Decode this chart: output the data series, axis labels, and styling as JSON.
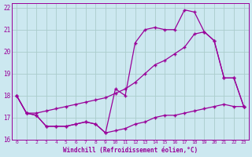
{
  "xlabel": "Windchill (Refroidissement éolien,°C)",
  "background_color": "#cce8f0",
  "grid_color": "#aacccc",
  "line_color": "#990099",
  "xlim": [
    -0.5,
    23.5
  ],
  "ylim": [
    16,
    22.2
  ],
  "yticks": [
    16,
    17,
    18,
    19,
    20,
    21,
    22
  ],
  "xticks": [
    0,
    1,
    2,
    3,
    4,
    5,
    6,
    7,
    8,
    9,
    10,
    11,
    12,
    13,
    14,
    15,
    16,
    17,
    18,
    19,
    20,
    21,
    22,
    23
  ],
  "line1_x": [
    0,
    1,
    2,
    3,
    4,
    5,
    6,
    7,
    8,
    9,
    10,
    11,
    12,
    13,
    14,
    15,
    16,
    17,
    18,
    19,
    20,
    21,
    22,
    23
  ],
  "line1_y": [
    18.0,
    17.2,
    17.1,
    16.6,
    16.6,
    16.6,
    16.7,
    16.8,
    16.7,
    16.3,
    18.3,
    18.0,
    20.4,
    21.0,
    21.1,
    21.0,
    21.0,
    21.9,
    21.8,
    20.9,
    20.5,
    18.8,
    18.8,
    17.5
  ],
  "line2_x": [
    0,
    1,
    2,
    3,
    4,
    5,
    6,
    7,
    8,
    9,
    10,
    11,
    12,
    13,
    14,
    15,
    16,
    17,
    18,
    19,
    20,
    21,
    22,
    23
  ],
  "line2_y": [
    18.0,
    17.2,
    17.2,
    17.3,
    17.4,
    17.5,
    17.6,
    17.7,
    17.8,
    17.9,
    18.1,
    18.3,
    18.6,
    19.0,
    19.4,
    19.6,
    19.9,
    20.2,
    20.8,
    20.9,
    20.5,
    18.8,
    18.8,
    17.5
  ],
  "line3_x": [
    0,
    1,
    2,
    3,
    4,
    5,
    6,
    7,
    8,
    9,
    10,
    11,
    12,
    13,
    14,
    15,
    16,
    17,
    18,
    19,
    20,
    21,
    22,
    23
  ],
  "line3_y": [
    18.0,
    17.2,
    17.1,
    16.6,
    16.6,
    16.6,
    16.7,
    16.8,
    16.7,
    16.3,
    16.4,
    16.5,
    16.7,
    16.8,
    17.0,
    17.1,
    17.1,
    17.2,
    17.3,
    17.4,
    17.5,
    17.6,
    17.5,
    17.5
  ]
}
